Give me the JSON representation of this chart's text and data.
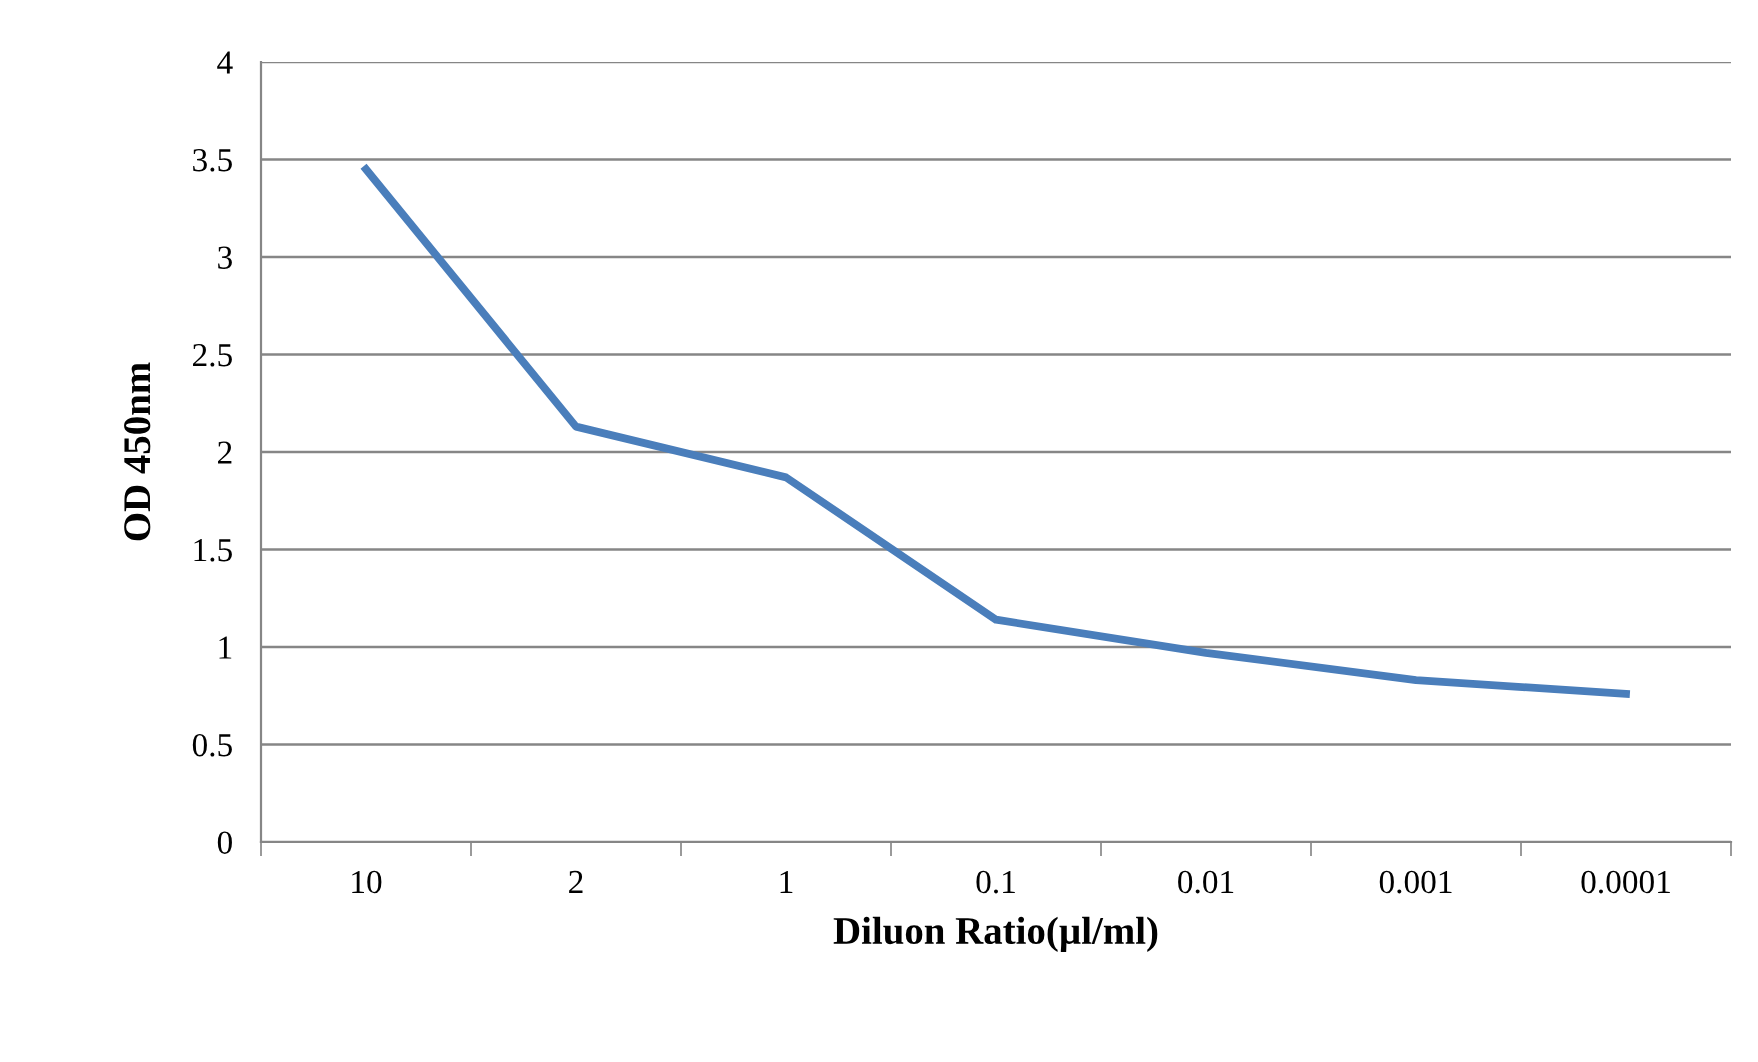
{
  "chart_data": {
    "type": "line",
    "xlabel": "Diluon Ratio(µl/ml)",
    "ylabel": "OD 450nm",
    "categories": [
      "10",
      "2",
      "1",
      "0.1",
      "0.01",
      "0.001",
      "0.0001"
    ],
    "series": [
      {
        "color": "#4a7ebb",
        "values": [
          3.45,
          2.13,
          1.87,
          1.14,
          0.97,
          0.83,
          0.76
        ]
      }
    ],
    "ylim": [
      0,
      4
    ],
    "yticks": [
      0,
      0.5,
      1,
      1.5,
      2,
      2.5,
      3,
      3.5,
      4
    ],
    "grid": "y",
    "marker": "none",
    "line_style": "solid"
  }
}
